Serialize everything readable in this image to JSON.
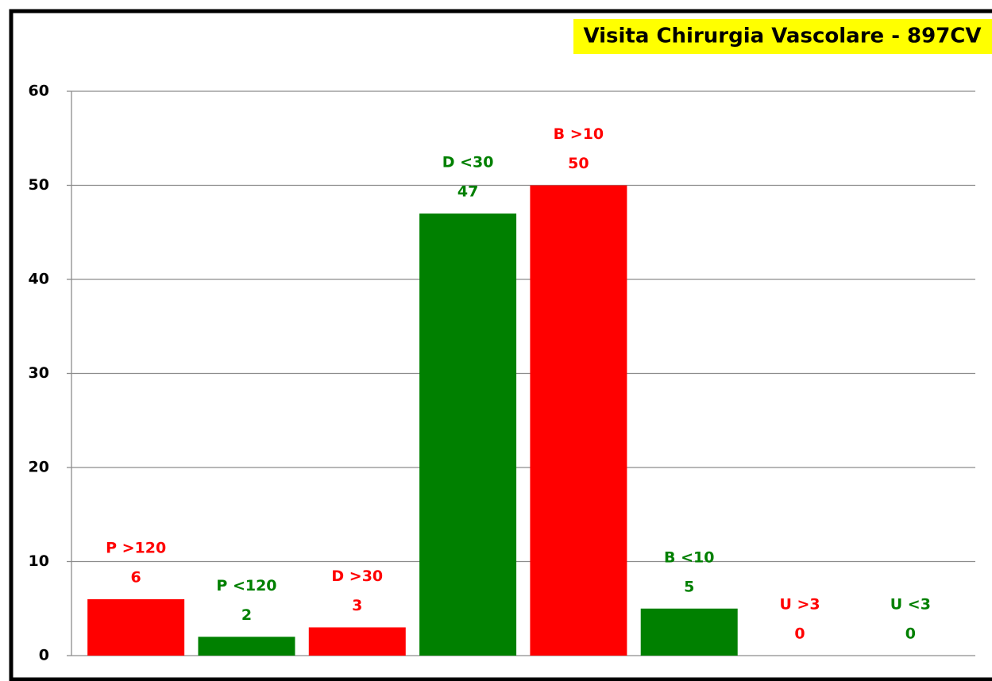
{
  "chart_data": {
    "type": "bar",
    "title": "Visita Chirurgia Vascolare - 897CV",
    "categories": [
      "P >120",
      "P <120",
      "D >30",
      "D <30",
      "B >10",
      "B <10",
      "U >3",
      "U <3"
    ],
    "values": [
      6,
      2,
      3,
      47,
      50,
      5,
      0,
      0
    ],
    "colors": [
      "#ff0000",
      "#008000",
      "#ff0000",
      "#008000",
      "#ff0000",
      "#008000",
      "#ff0000",
      "#008000"
    ],
    "ylim": [
      0,
      60
    ],
    "yticks": [
      0,
      10,
      20,
      30,
      40,
      50,
      60
    ],
    "grid": true
  }
}
